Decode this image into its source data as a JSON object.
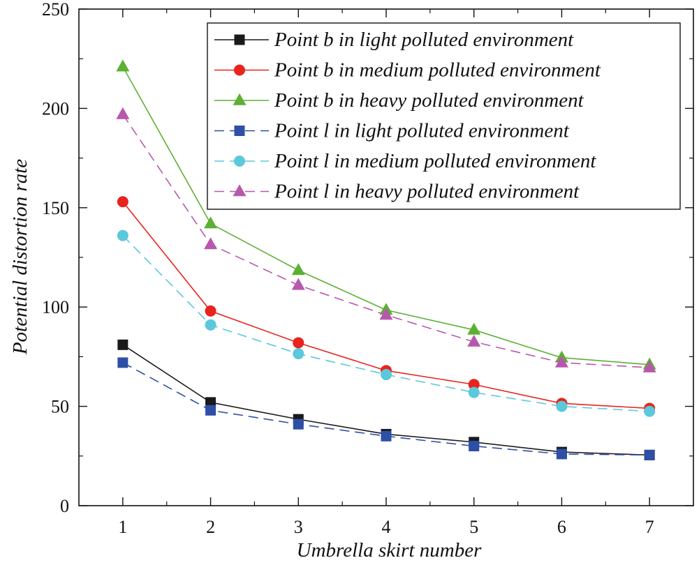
{
  "chart_data": {
    "type": "line",
    "xlabel": "Umbrella skirt number",
    "ylabel": "Potential distortion rate",
    "x": [
      1,
      2,
      3,
      4,
      5,
      6,
      7
    ],
    "xlim": [
      0.5,
      7.5
    ],
    "ylim": [
      0,
      250
    ],
    "xticks": [
      "1",
      "2",
      "3",
      "4",
      "5",
      "6",
      "7"
    ],
    "yticks": [
      "0",
      "50",
      "100",
      "150",
      "200",
      "250"
    ],
    "grid": false,
    "legend_position": "top-right",
    "series": [
      {
        "name": "Point b in light polluted environment",
        "values": [
          81,
          52,
          43.5,
          36,
          32,
          27,
          25.5
        ],
        "color": "#1a1a1a",
        "marker": "square",
        "dash": "solid"
      },
      {
        "name": "Point b in medium polluted environment",
        "values": [
          153,
          98,
          82,
          68,
          61,
          51.5,
          49
        ],
        "color": "#e8241c",
        "marker": "circle",
        "dash": "solid"
      },
      {
        "name": "Point b in heavy polluted environment",
        "values": [
          221,
          142,
          118.5,
          98.5,
          88.5,
          74.5,
          71
        ],
        "color": "#5cb032",
        "marker": "triangle",
        "dash": "solid"
      },
      {
        "name": "Point l in light polluted environment",
        "values": [
          72,
          48,
          41,
          35,
          30,
          26,
          25.5
        ],
        "color": "#2e4fa6",
        "marker": "square",
        "dash": "dashed"
      },
      {
        "name": "Point l in medium polluted environment",
        "values": [
          136,
          91,
          76.5,
          66,
          57,
          50,
          47.5
        ],
        "color": "#5cc8dc",
        "marker": "circle",
        "dash": "dashed"
      },
      {
        "name": "Point l in heavy polluted environment",
        "values": [
          197,
          131.5,
          111,
          96,
          82.5,
          72,
          69.5
        ],
        "color": "#b858ac",
        "marker": "triangle",
        "dash": "dashed"
      }
    ]
  }
}
